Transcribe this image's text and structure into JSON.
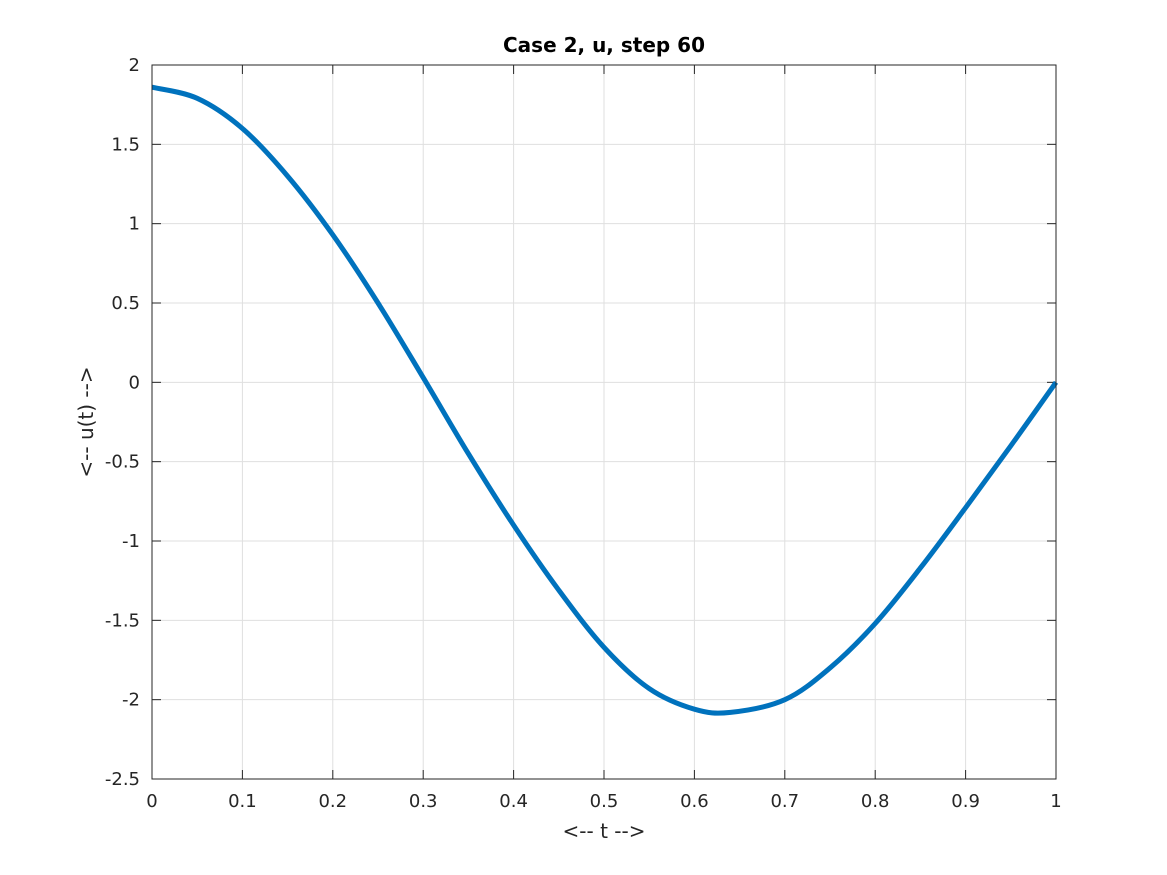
{
  "chart_data": {
    "type": "line",
    "title": "Case 2, u, step 60",
    "xlabel": "<-- t -->",
    "ylabel": "<-- u(t) -->",
    "xlim": [
      0,
      1
    ],
    "ylim": [
      -2.5,
      2
    ],
    "xticks": [
      0,
      0.1,
      0.2,
      0.3,
      0.4,
      0.5,
      0.6,
      0.7,
      0.8,
      0.9,
      1
    ],
    "xtick_labels": [
      "0",
      "0.1",
      "0.2",
      "0.3",
      "0.4",
      "0.5",
      "0.6",
      "0.7",
      "0.8",
      "0.9",
      "1"
    ],
    "yticks": [
      -2.5,
      -2,
      -1.5,
      -1,
      -0.5,
      0,
      0.5,
      1,
      1.5,
      2
    ],
    "ytick_labels": [
      "-2.5",
      "-2",
      "-1.5",
      "-1",
      "-0.5",
      "0",
      "0.5",
      "1",
      "1.5",
      "2"
    ],
    "grid": true,
    "series": [
      {
        "color": "#0072bd",
        "x": [
          0,
          0.05,
          0.1,
          0.15,
          0.2,
          0.25,
          0.3,
          0.35,
          0.4,
          0.45,
          0.5,
          0.55,
          0.6,
          0.64,
          0.7,
          0.75,
          0.8,
          0.85,
          0.9,
          0.95,
          1
        ],
        "y": [
          1.86,
          1.79,
          1.6,
          1.3,
          0.93,
          0.5,
          0.03,
          -0.45,
          -0.9,
          -1.31,
          -1.67,
          -1.93,
          -2.06,
          -2.08,
          -2.0,
          -1.8,
          -1.52,
          -1.17,
          -0.79,
          -0.4,
          0.0
        ]
      }
    ]
  }
}
